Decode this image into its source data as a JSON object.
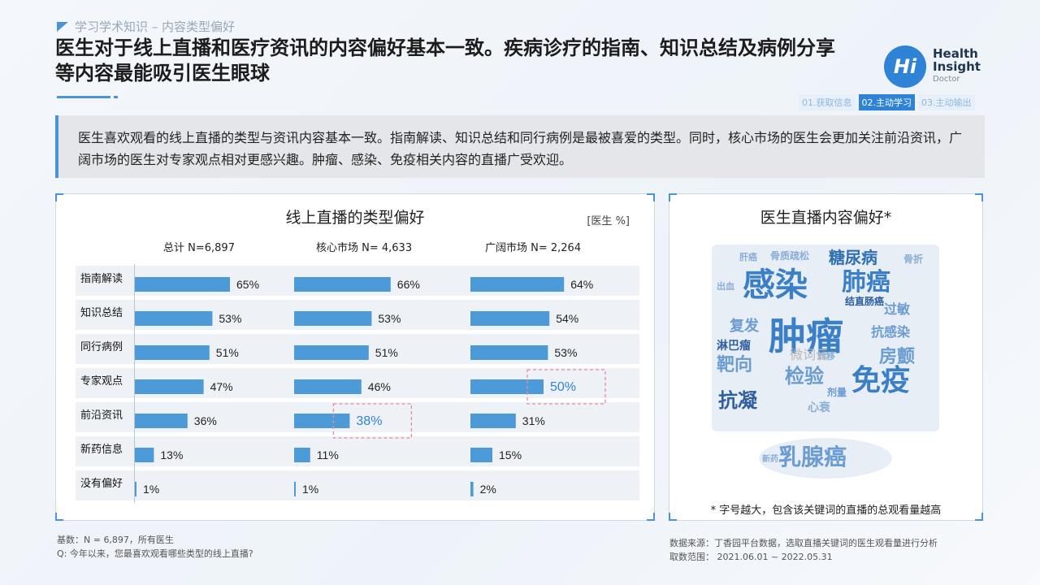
{
  "breadcrumb": "学习学术知识 – 内容类型偏好",
  "headline": "医生对于线上直播和医疗资讯的内容偏好基本一致。疾病诊疗的指南、知识总结及病例分享等内容最能吸引医生眼球",
  "logo": {
    "mark": "Hi",
    "line1": "Health",
    "line2": "Insight",
    "sub": "Doctor"
  },
  "steps": [
    "01.获取信息",
    "02.主动学习",
    "03.主动输出"
  ],
  "summary": "医生喜欢观看的线上直播的类型与资讯内容基本一致。指南解读、知识总结和同行病例是最被喜爱的类型。同时，核心市场的医生会更加关注前沿资讯，广阔市场的医生对专家观点相对更感兴趣。肿瘤、感染、免疫相关内容的直播广受欢迎。",
  "chart_data": {
    "type": "bar",
    "title": "线上直播的类型偏好",
    "unit": "[医生 %]",
    "categories": [
      "指南解读",
      "知识总结",
      "同行病例",
      "专家观点",
      "前沿资讯",
      "新药信息",
      "没有偏好"
    ],
    "series": [
      {
        "name": "总计 N=6,897",
        "values": [
          65,
          53,
          51,
          47,
          36,
          13,
          1
        ]
      },
      {
        "name": "核心市场 N= 4,633",
        "values": [
          66,
          53,
          51,
          46,
          38,
          11,
          1
        ]
      },
      {
        "name": "广阔市场 N= 2,264",
        "values": [
          64,
          54,
          53,
          50,
          31,
          15,
          2
        ]
      }
    ],
    "highlights": [
      {
        "series": 1,
        "category": 4
      },
      {
        "series": 2,
        "category": 3
      }
    ],
    "bar_color": "#4d9ad9",
    "highlight_color": "#e58aa0"
  },
  "word_cloud": {
    "title": "医生直播内容偏好*",
    "note": "* 字号越大，包含该关键词的直播的总观看量越高",
    "watermark": "微词云",
    "words": [
      "感染",
      "肿瘤",
      "肺癌",
      "糖尿病",
      "免疫",
      "抗凝",
      "乳腺癌",
      "靶向",
      "检验",
      "房颤",
      "抗感染",
      "过敏",
      "淋巴瘤",
      "复发",
      "结直肠癌",
      "骨质疏松",
      "肝癌",
      "骨折",
      "心衰",
      "剂量",
      "出血",
      "转移",
      "新药"
    ]
  },
  "footer_left": [
    "基数：N = 6,897，所有医生",
    "Q: 今年以来，您最喜欢观看哪些类型的线上直播?"
  ],
  "footer_right": [
    "数据来源：丁香园平台数据，选取直播关键词的医生观看量进行分析",
    "取数范围： 2021.06.01 ~ 2022.05.31"
  ]
}
